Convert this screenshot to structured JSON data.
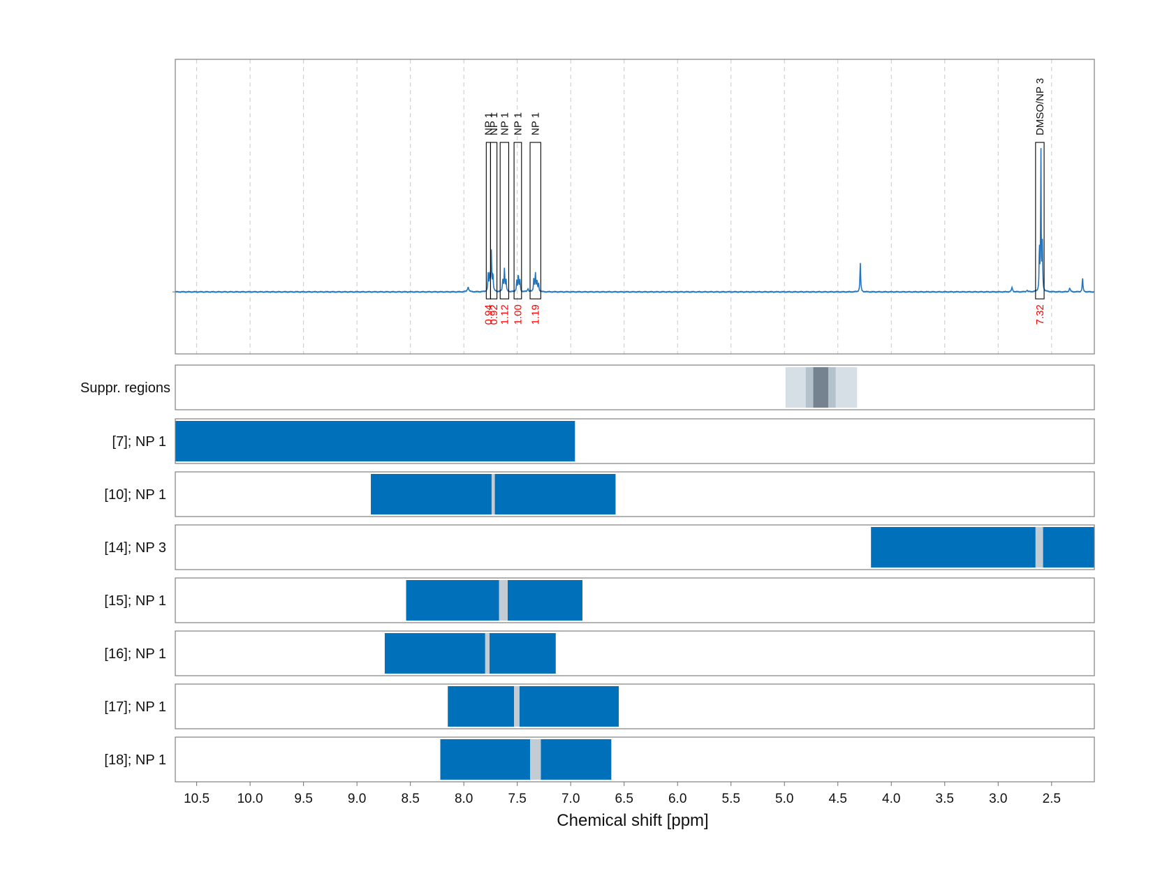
{
  "chart_data": {
    "type": "line",
    "xlabel": "Chemical shift [ppm]",
    "x_reversed": true,
    "xlim": [
      10.7,
      2.1
    ],
    "xticks": [
      10.5,
      10.0,
      9.5,
      9.0,
      8.5,
      8.0,
      7.5,
      7.0,
      6.5,
      6.0,
      5.5,
      5.0,
      4.5,
      4.0,
      3.5,
      3.0,
      2.5
    ],
    "xtick_labels": [
      "10.5",
      "10.0",
      "9.5",
      "9.0",
      "8.5",
      "8.0",
      "7.5",
      "7.0",
      "6.5",
      "6.0",
      "5.5",
      "5.0",
      "4.5",
      "4.0",
      "3.5",
      "3.0",
      "2.5"
    ],
    "grid": true,
    "colors": {
      "spectrum": "#1f77c4",
      "bar": "#0070bb",
      "gap": "#c4ccd3",
      "integral_text": "#ff0000",
      "suppr_light": "#d6dfe6",
      "suppr_mid": "#b3c2cc",
      "suppr_dark": "#74838f"
    },
    "spectrum_peaks": [
      {
        "x": 7.96,
        "y": 0.03,
        "w": 0.008
      },
      {
        "x": 7.772,
        "y": 0.115,
        "w": 0.004
      },
      {
        "x": 7.758,
        "y": 0.105,
        "w": 0.004
      },
      {
        "x": 7.743,
        "y": 0.26,
        "w": 0.004
      },
      {
        "x": 7.728,
        "y": 0.11,
        "w": 0.004
      },
      {
        "x": 7.635,
        "y": 0.08,
        "w": 0.004
      },
      {
        "x": 7.62,
        "y": 0.15,
        "w": 0.004
      },
      {
        "x": 7.605,
        "y": 0.075,
        "w": 0.004
      },
      {
        "x": 7.505,
        "y": 0.07,
        "w": 0.004
      },
      {
        "x": 7.49,
        "y": 0.11,
        "w": 0.004
      },
      {
        "x": 7.475,
        "y": 0.075,
        "w": 0.004
      },
      {
        "x": 7.4,
        "y": 0.02,
        "w": 0.006
      },
      {
        "x": 7.345,
        "y": 0.085,
        "w": 0.004
      },
      {
        "x": 7.33,
        "y": 0.12,
        "w": 0.004
      },
      {
        "x": 7.315,
        "y": 0.07,
        "w": 0.004
      },
      {
        "x": 7.3,
        "y": 0.05,
        "w": 0.004
      },
      {
        "x": 4.29,
        "y": 0.185,
        "w": 0.004
      },
      {
        "x": 2.87,
        "y": 0.028,
        "w": 0.006
      },
      {
        "x": 2.73,
        "y": 0.01,
        "w": 0.006
      },
      {
        "x": 2.6,
        "y": 0.93,
        "w": 0.003
      },
      {
        "x": 2.586,
        "y": 0.3,
        "w": 0.003
      },
      {
        "x": 2.614,
        "y": 0.3,
        "w": 0.003
      },
      {
        "x": 2.33,
        "y": 0.025,
        "w": 0.006
      },
      {
        "x": 2.21,
        "y": 0.09,
        "w": 0.004
      }
    ],
    "spectrum_ylim": [
      -0.4,
      1.5
    ],
    "peak_annotations": [
      {
        "label": "NP 1",
        "integral": "0.94",
        "x_from": 7.79,
        "x_to": 7.75,
        "top": 0.98
      },
      {
        "label": "NP 1",
        "integral": "0.92",
        "x_from": 7.75,
        "x_to": 7.69,
        "top": 0.98
      },
      {
        "label": "NP 1",
        "integral": "1.12",
        "x_from": 7.66,
        "x_to": 7.58,
        "top": 0.98
      },
      {
        "label": "NP 1",
        "integral": "1.00",
        "x_from": 7.53,
        "x_to": 7.46,
        "top": 0.98
      },
      {
        "label": "NP 1",
        "integral": "1.19",
        "x_from": 7.38,
        "x_to": 7.28,
        "top": 0.98
      },
      {
        "label": "DMSO/NP 3",
        "integral": "7.32",
        "x_from": 2.65,
        "x_to": 2.57,
        "top": 0.98
      }
    ],
    "suppr_label": "Suppr. regions",
    "suppr_regions": [
      {
        "x_from": 4.99,
        "x_to": 4.32,
        "shade": "light"
      },
      {
        "x_from": 4.8,
        "x_to": 4.52,
        "shade": "mid"
      },
      {
        "x_from": 4.73,
        "x_to": 4.59,
        "shade": "dark"
      }
    ],
    "rows": [
      {
        "label": "[7]; NP 1",
        "segments": [
          [
            10.7,
            6.96
          ]
        ]
      },
      {
        "label": "[10]; NP 1",
        "segments": [
          [
            8.87,
            7.74
          ],
          [
            7.71,
            6.58
          ]
        ],
        "gap": [
          7.74,
          7.71
        ]
      },
      {
        "label": "[14]; NP 3",
        "segments": [
          [
            4.19,
            2.65
          ],
          [
            2.58,
            2.1
          ]
        ],
        "gap": [
          2.65,
          2.58
        ]
      },
      {
        "label": "[15]; NP 1",
        "segments": [
          [
            8.54,
            7.67
          ],
          [
            7.59,
            6.89
          ]
        ],
        "gap": [
          7.67,
          7.59
        ]
      },
      {
        "label": "[16]; NP 1",
        "segments": [
          [
            8.74,
            7.8
          ],
          [
            7.76,
            7.14
          ]
        ],
        "gap": [
          7.8,
          7.76
        ]
      },
      {
        "label": "[17]; NP 1",
        "segments": [
          [
            8.15,
            7.53
          ],
          [
            7.48,
            6.55
          ]
        ],
        "gap": [
          7.53,
          7.48
        ]
      },
      {
        "label": "[18]; NP 1",
        "segments": [
          [
            8.22,
            7.38
          ],
          [
            7.28,
            6.62
          ]
        ],
        "gap": [
          7.38,
          7.28
        ]
      }
    ]
  }
}
